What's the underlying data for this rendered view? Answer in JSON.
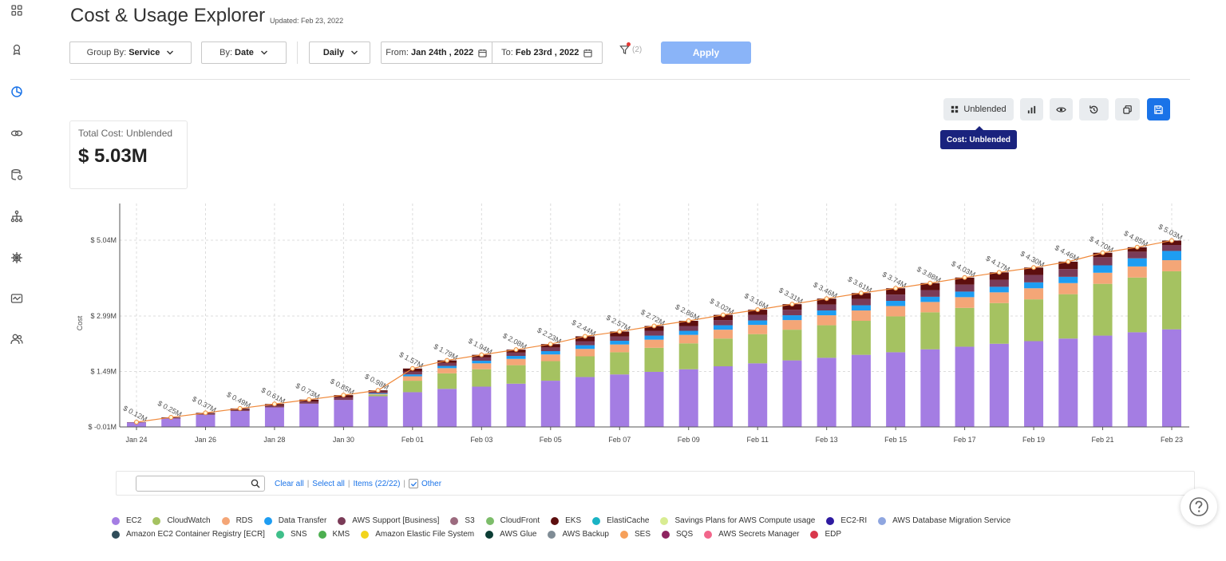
{
  "header": {
    "title": "Cost & Usage Explorer",
    "updated": "Updated: Feb 23, 2022"
  },
  "filters": {
    "group_by_label": "Group By:",
    "group_by_value": "Service",
    "by_label": "By:",
    "by_value": "Date",
    "granularity": "Daily",
    "from_label": "From:",
    "from_value": "Jan 24th , 2022",
    "to_label": "To:",
    "to_value": "Feb 23rd , 2022",
    "filter_count": "(2)",
    "apply_label": "Apply"
  },
  "toolbar": {
    "cost_type_label": "Unblended",
    "tooltip": "Cost: Unblended"
  },
  "summary": {
    "label": "Total Cost: Unblended",
    "value": "$ 5.03M"
  },
  "legend_controls": {
    "search_value": "",
    "clear_all": "Clear all",
    "select_all": "Select all",
    "items_count": "Items (22/22)",
    "other_label": "Other"
  },
  "legend": [
    [
      {
        "name": "EC2",
        "color": "#a47de3"
      },
      {
        "name": "CloudWatch",
        "color": "#a5c261"
      },
      {
        "name": "RDS",
        "color": "#f4a677"
      },
      {
        "name": "Data Transfer",
        "color": "#1e9df2"
      },
      {
        "name": "AWS Support [Business]",
        "color": "#7a3b57"
      },
      {
        "name": "S3",
        "color": "#9c6b7f"
      },
      {
        "name": "CloudFront",
        "color": "#7dbd6a"
      },
      {
        "name": "EKS",
        "color": "#5d0e0e"
      },
      {
        "name": "ElastiCache",
        "color": "#1ab3c4"
      },
      {
        "name": "Savings Plans for AWS Compute usage",
        "color": "#d8ec92"
      },
      {
        "name": "EC2-RI",
        "color": "#2e1aa0"
      },
      {
        "name": "AWS Database Migration Service",
        "color": "#8fa6e0"
      }
    ],
    [
      {
        "name": "Amazon EC2 Container Registry [ECR]",
        "color": "#2f4d5a"
      },
      {
        "name": "SNS",
        "color": "#3fbf8a"
      },
      {
        "name": "KMS",
        "color": "#4caf50"
      },
      {
        "name": "Amazon Elastic File System",
        "color": "#f2d41b"
      },
      {
        "name": "AWS Glue",
        "color": "#0b3d35"
      },
      {
        "name": "AWS Backup",
        "color": "#7f8c95"
      },
      {
        "name": "SES",
        "color": "#f6a05a"
      },
      {
        "name": "SQS",
        "color": "#8e2460"
      },
      {
        "name": "AWS Secrets Manager",
        "color": "#f2668b"
      },
      {
        "name": "EDP",
        "color": "#d9374b"
      }
    ]
  ],
  "chart_data": {
    "type": "bar",
    "ylabel": "Cost",
    "y_ticks": [
      "$ -0.01M",
      "$ 1.49M",
      "$ 2.99M",
      "$ 5.04M"
    ],
    "y_tick_values": [
      -0.01,
      1.49,
      2.99,
      5.04
    ],
    "x_tick_labels": [
      "Jan 24",
      "Jan 26",
      "Jan 28",
      "Jan 30",
      "Feb 01",
      "Feb 03",
      "Feb 05",
      "Feb 07",
      "Feb 09",
      "Feb 11",
      "Feb 13",
      "Feb 15",
      "Feb 17",
      "Feb 19",
      "Feb 21",
      "Feb 23"
    ],
    "categories": [
      "Jan 24",
      "Jan 25",
      "Jan 26",
      "Jan 27",
      "Jan 28",
      "Jan 29",
      "Jan 30",
      "Jan 31",
      "Feb 01",
      "Feb 02",
      "Feb 03",
      "Feb 04",
      "Feb 05",
      "Feb 06",
      "Feb 07",
      "Feb 08",
      "Feb 09",
      "Feb 10",
      "Feb 11",
      "Feb 12",
      "Feb 13",
      "Feb 14",
      "Feb 15",
      "Feb 16",
      "Feb 17",
      "Feb 18",
      "Feb 19",
      "Feb 20",
      "Feb 21",
      "Feb 22",
      "Feb 23"
    ],
    "cumulative_values": [
      0.12,
      0.25,
      0.37,
      0.49,
      0.61,
      0.73,
      0.85,
      0.98,
      1.57,
      1.79,
      1.94,
      2.08,
      2.23,
      2.44,
      2.57,
      2.72,
      2.86,
      3.02,
      3.16,
      3.31,
      3.46,
      3.61,
      3.74,
      3.88,
      4.03,
      4.17,
      4.3,
      4.46,
      4.7,
      4.85,
      5.03
    ],
    "cumulative_labels": [
      "$ 0.12M",
      "$ 0.25M",
      "$ 0.37M",
      "$ 0.49M",
      "$ 0.61M",
      "$ 0.73M",
      "$ 0.85M",
      "$ 0.98M",
      "$ 1.57M",
      "$ 1.79M",
      "$ 1.94M",
      "$ 2.08M",
      "$ 2.23M",
      "$ 2.44M",
      "$ 2.57M",
      "$ 2.72M",
      "$ 2.86M",
      "$ 3.02M",
      "$ 3.16M",
      "$ 3.31M",
      "$ 3.46M",
      "$ 3.61M",
      "$ 3.74M",
      "$ 3.88M",
      "$ 4.03M",
      "$ 4.17M",
      "$ 4.30M",
      "$ 4.46M",
      "$ 4.70M",
      "$ 4.85M",
      "$ 5.03M"
    ],
    "series": [
      {
        "name": "EC2",
        "color": "#a47de3",
        "values": [
          0.11,
          0.22,
          0.32,
          0.42,
          0.52,
          0.62,
          0.72,
          0.82,
          0.93,
          1.02,
          1.08,
          1.16,
          1.24,
          1.34,
          1.41,
          1.48,
          1.55,
          1.63,
          1.71,
          1.79,
          1.86,
          1.94,
          2.01,
          2.09,
          2.16,
          2.24,
          2.31,
          2.38,
          2.46,
          2.55,
          2.63
        ]
      },
      {
        "name": "CloudWatch",
        "color": "#a5c261",
        "values": [
          0,
          0,
          0,
          0,
          0,
          0,
          0,
          0.04,
          0.31,
          0.42,
          0.47,
          0.5,
          0.53,
          0.56,
          0.6,
          0.65,
          0.7,
          0.75,
          0.79,
          0.83,
          0.88,
          0.92,
          0.97,
          1.0,
          1.05,
          1.1,
          1.13,
          1.2,
          1.4,
          1.48,
          1.57
        ]
      },
      {
        "name": "RDS",
        "color": "#f4a677",
        "values": [
          0,
          0,
          0,
          0,
          0,
          0,
          0,
          0.02,
          0.12,
          0.14,
          0.16,
          0.17,
          0.18,
          0.2,
          0.21,
          0.22,
          0.23,
          0.24,
          0.25,
          0.26,
          0.27,
          0.28,
          0.28,
          0.28,
          0.29,
          0.29,
          0.3,
          0.3,
          0.3,
          0.3,
          0.3
        ]
      },
      {
        "name": "Data Transfer",
        "color": "#1e9df2",
        "values": [
          0,
          0,
          0,
          0,
          0,
          0,
          0,
          0.02,
          0.05,
          0.06,
          0.07,
          0.08,
          0.09,
          0.1,
          0.1,
          0.11,
          0.11,
          0.12,
          0.12,
          0.13,
          0.13,
          0.14,
          0.14,
          0.14,
          0.15,
          0.15,
          0.16,
          0.17,
          0.2,
          0.22,
          0.25
        ]
      },
      {
        "name": "AWS Support [Business]",
        "color": "#7a3b57",
        "values": [
          0.005,
          0.02,
          0.03,
          0.04,
          0.05,
          0.06,
          0.07,
          0.05,
          0.08,
          0.08,
          0.09,
          0.09,
          0.1,
          0.11,
          0.12,
          0.13,
          0.13,
          0.14,
          0.15,
          0.15,
          0.16,
          0.17,
          0.17,
          0.18,
          0.19,
          0.19,
          0.2,
          0.21,
          0.22,
          0.18,
          0.16
        ]
      },
      {
        "name": "EKS",
        "color": "#5d0e0e",
        "values": [
          0.005,
          0.01,
          0.02,
          0.03,
          0.04,
          0.05,
          0.06,
          0.03,
          0.08,
          0.07,
          0.07,
          0.08,
          0.09,
          0.13,
          0.13,
          0.13,
          0.14,
          0.14,
          0.14,
          0.15,
          0.16,
          0.16,
          0.17,
          0.19,
          0.19,
          0.2,
          0.2,
          0.2,
          0.12,
          0.12,
          0.12
        ]
      }
    ]
  }
}
